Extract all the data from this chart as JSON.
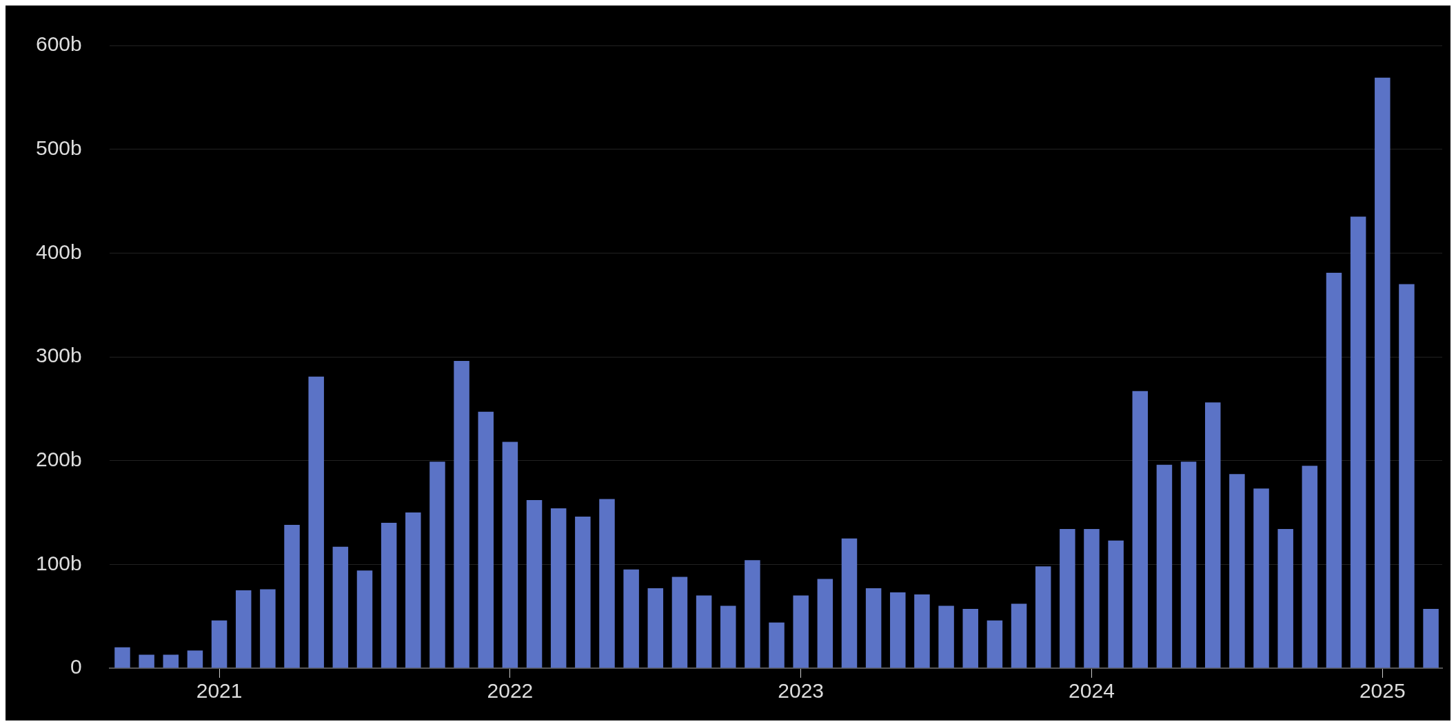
{
  "chart_data": {
    "type": "bar",
    "x": [
      "2020-09",
      "2020-10",
      "2020-11",
      "2020-12",
      "2021-01",
      "2021-02",
      "2021-03",
      "2021-04",
      "2021-05",
      "2021-06",
      "2021-07",
      "2021-08",
      "2021-09",
      "2021-10",
      "2021-11",
      "2021-12",
      "2022-01",
      "2022-02",
      "2022-03",
      "2022-04",
      "2022-05",
      "2022-06",
      "2022-07",
      "2022-08",
      "2022-09",
      "2022-10",
      "2022-11",
      "2022-12",
      "2023-01",
      "2023-02",
      "2023-03",
      "2023-04",
      "2023-05",
      "2023-06",
      "2023-07",
      "2023-08",
      "2023-09",
      "2023-10",
      "2023-11",
      "2023-12",
      "2024-01",
      "2024-02",
      "2024-03",
      "2024-04",
      "2024-05",
      "2024-06",
      "2024-07",
      "2024-08",
      "2024-09",
      "2024-10",
      "2024-11",
      "2024-12",
      "2025-01",
      "2025-02",
      "2025-03"
    ],
    "values": [
      20,
      13,
      13,
      17,
      46,
      75,
      76,
      138,
      281,
      117,
      94,
      140,
      150,
      199,
      296,
      247,
      218,
      162,
      154,
      146,
      163,
      95,
      77,
      88,
      70,
      60,
      104,
      44,
      70,
      86,
      125,
      77,
      73,
      71,
      60,
      57,
      46,
      62,
      98,
      134,
      134,
      123,
      267,
      196,
      199,
      256,
      187,
      173,
      134,
      195,
      381,
      435,
      569,
      370,
      57
    ],
    "color": "#5b73c6",
    "xlim": [
      "2020-08-15",
      "2025-03-15"
    ],
    "xticks": [
      "2021",
      "2022",
      "2023",
      "2024",
      "2025"
    ],
    "ylim": [
      0,
      600
    ],
    "yticks": [
      0,
      {
        "value": 100,
        "label": "100b"
      },
      {
        "value": 200,
        "label": "200b"
      },
      {
        "value": 300,
        "label": "300b"
      },
      {
        "value": 400,
        "label": "400b"
      },
      {
        "value": 500,
        "label": "500b"
      },
      {
        "value": 600,
        "label": "600b"
      }
    ],
    "grid": "y"
  }
}
